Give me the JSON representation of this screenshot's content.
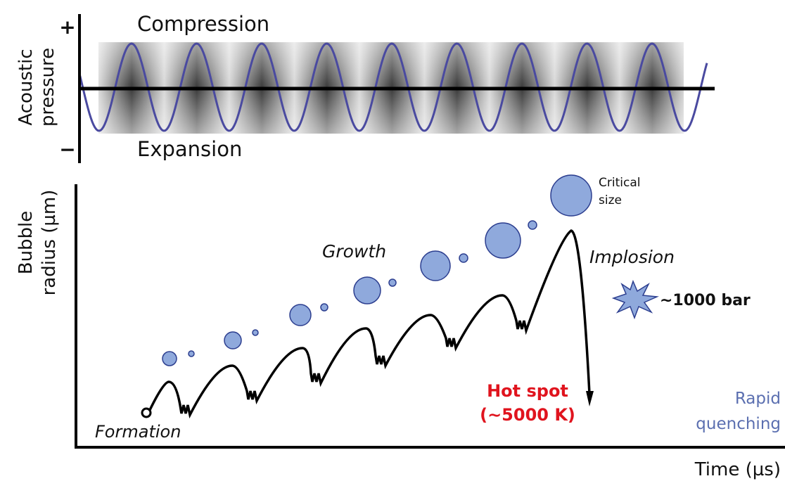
{
  "top_panel": {
    "plus": "+",
    "minus": "−",
    "y_label": [
      "Acoustic",
      "pressure"
    ],
    "compression": "Compression",
    "expansion": "Expansion"
  },
  "bottom_panel": {
    "y_label": [
      "Bubble",
      "radius (µm)"
    ],
    "critical_size": [
      "Critical",
      "size"
    ],
    "growth": "Growth",
    "implosion": "Implosion",
    "pressure": "∼1000 bar",
    "hot_spot": [
      "Hot spot",
      "(∼5000 K)"
    ],
    "quenching": [
      "Rapid",
      "quenching"
    ],
    "formation": "Formation",
    "x_label": "Time (µs)"
  }
}
